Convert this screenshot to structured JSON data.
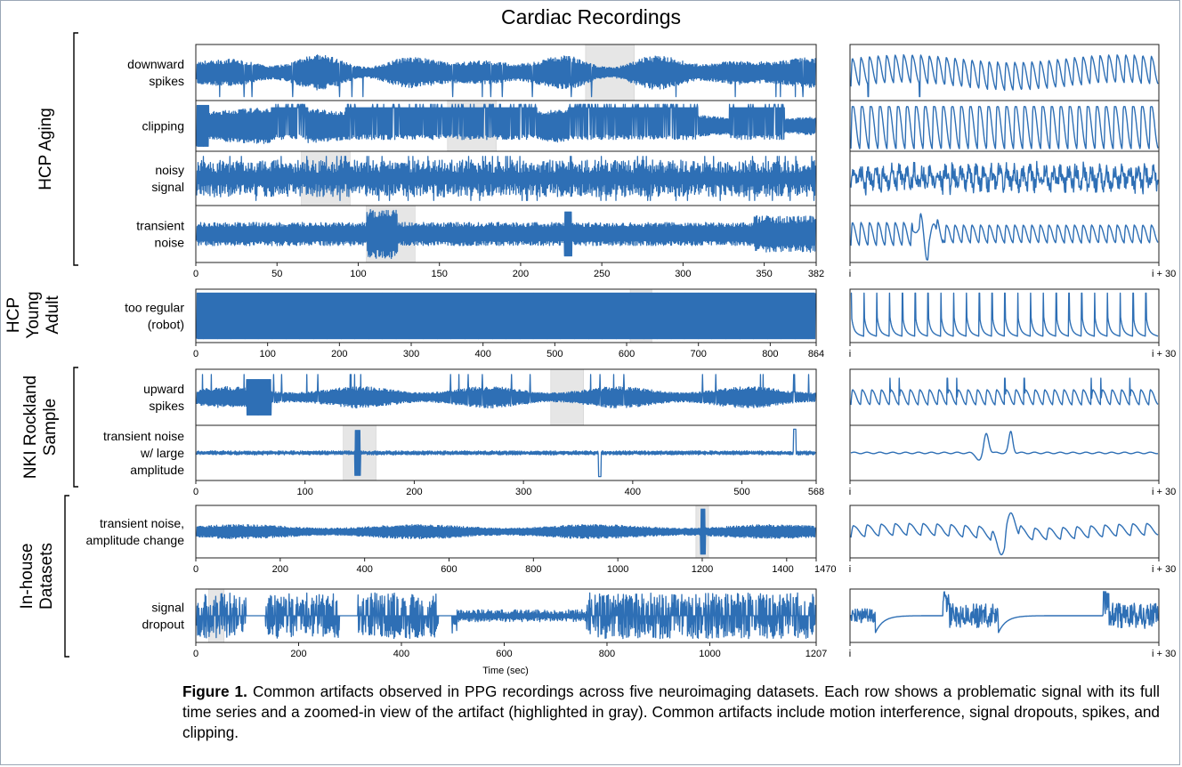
{
  "figure": {
    "title": "Cardiac Recordings",
    "caption_label": "Figure 1.",
    "caption_text": "Common artifacts observed in PPG recordings across five neuroimaging datasets. Each row shows a problematic signal with its full time series and a zoomed-in view of the artifact (highlighted in gray). Common artifacts include motion interference, signal dropouts, spikes, and clipping."
  },
  "colors": {
    "signal": "#2e6fb5",
    "highlight": "#e6e6e6",
    "axis": "#222222",
    "border": "#9aa7b6"
  },
  "chart_data": {
    "type": "line",
    "xlabel": "Time (sec)",
    "ylabel": "",
    "zoom_ticks": [
      "i",
      "i + 30"
    ],
    "groups": [
      {
        "name": "HCP Aging",
        "xlim": [
          0,
          382
        ],
        "xticks": [
          0,
          50,
          100,
          150,
          200,
          250,
          300,
          350,
          382
        ],
        "rows": [
          {
            "label": [
              "downward",
              "spikes"
            ],
            "artifact": "downward_spikes",
            "highlight": [
              240,
              270
            ]
          },
          {
            "label": [
              "clipping"
            ],
            "artifact": "clipping",
            "highlight": [
              155,
              185
            ]
          },
          {
            "label": [
              "noisy",
              "signal"
            ],
            "artifact": "noisy",
            "highlight": [
              65,
              95
            ]
          },
          {
            "label": [
              "transient",
              "noise"
            ],
            "artifact": "transient",
            "highlight": [
              105,
              135
            ]
          }
        ]
      },
      {
        "name": "HCP Young Adult",
        "xlim": [
          0,
          864
        ],
        "xticks": [
          0,
          100,
          200,
          300,
          400,
          500,
          600,
          700,
          800,
          864
        ],
        "rows": [
          {
            "label": [
              "too regular",
              "(robot)"
            ],
            "artifact": "robot",
            "highlight": [
              605,
              635
            ]
          }
        ]
      },
      {
        "name": "NKI Rockland Sample",
        "xlim": [
          0,
          568
        ],
        "xticks": [
          0,
          100,
          200,
          300,
          400,
          500,
          568
        ],
        "rows": [
          {
            "label": [
              "upward",
              "spikes"
            ],
            "artifact": "upward_spikes",
            "highlight": [
              325,
              355
            ]
          },
          {
            "label": [
              "transient noise",
              "w/ large",
              "amplitude"
            ],
            "artifact": "large_transient",
            "highlight": [
              135,
              165
            ]
          }
        ]
      },
      {
        "name": "In-house Datasets",
        "xlim": [
          0,
          1470
        ],
        "xticks": [
          0,
          200,
          400,
          600,
          800,
          1000,
          1200,
          1400,
          1470
        ],
        "rows": [
          {
            "label": [
              "transient noise,",
              "amplitude change"
            ],
            "artifact": "amp_change",
            "highlight": [
              1185,
              1215
            ]
          }
        ]
      },
      {
        "name": "",
        "xlim": [
          0,
          1207
        ],
        "xticks": [
          0,
          200,
          400,
          600,
          800,
          1000,
          1207
        ],
        "rows": [
          {
            "label": [
              "signal",
              "dropout"
            ],
            "artifact": "dropout",
            "highlight": [
              25,
              55
            ]
          }
        ]
      }
    ]
  }
}
